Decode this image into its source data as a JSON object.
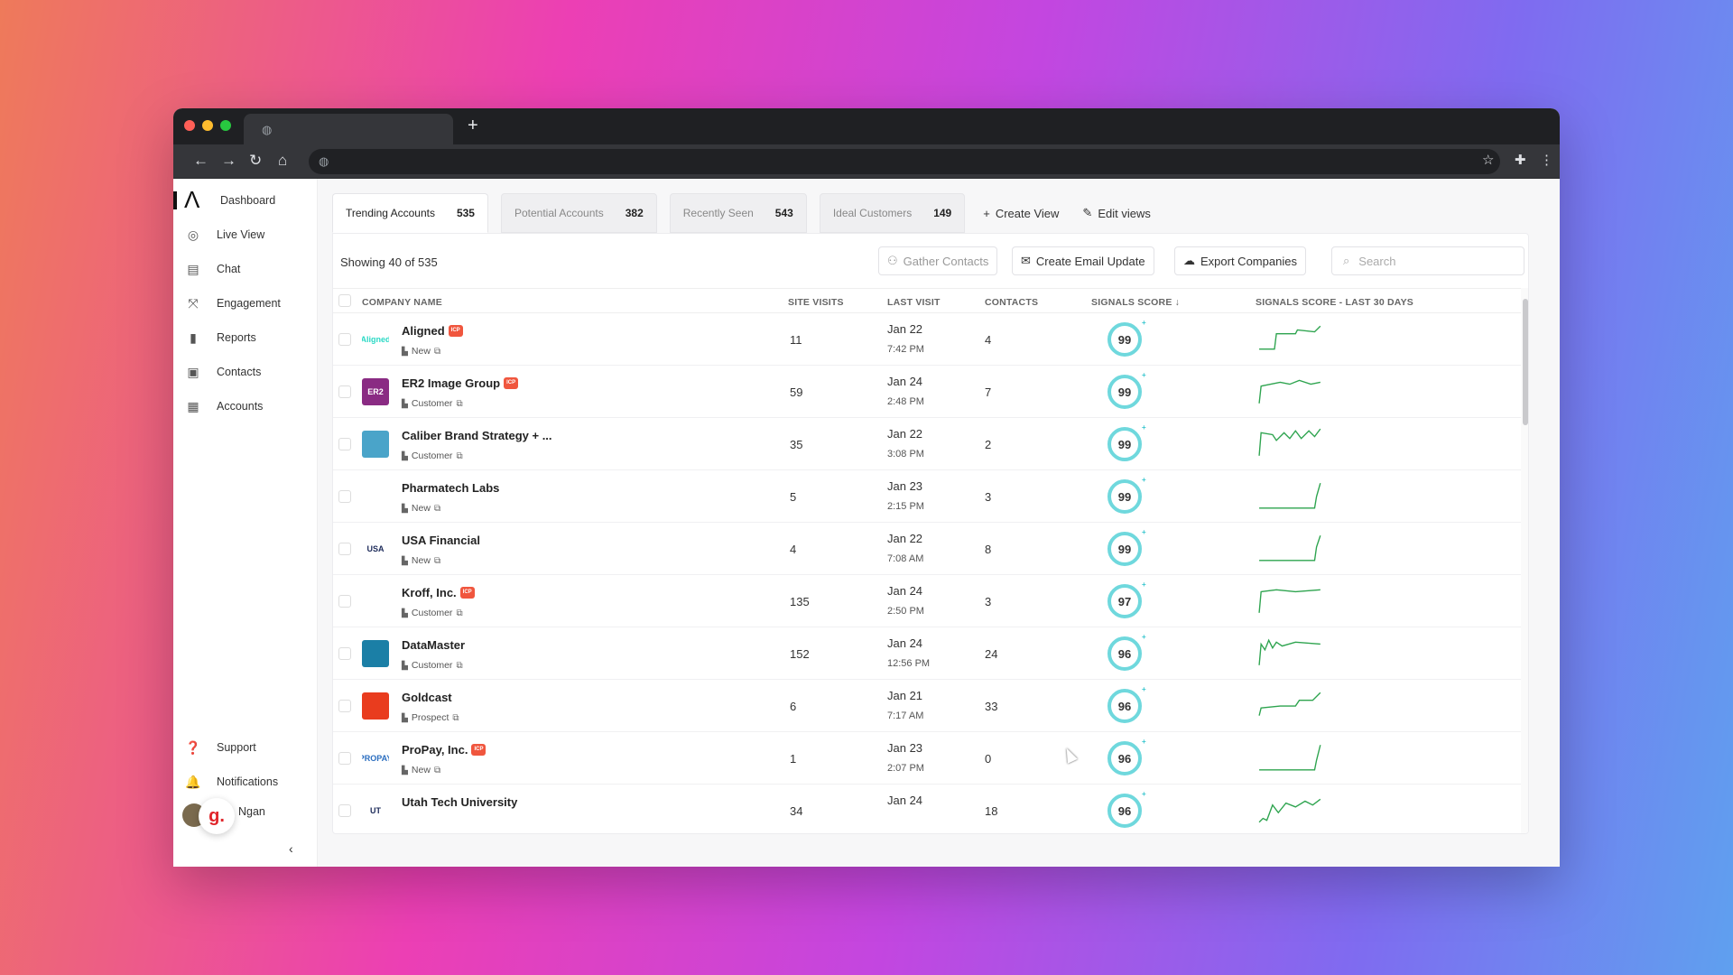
{
  "sidebar": {
    "items": [
      {
        "label": "Dashboard",
        "icon": "logo-icon"
      },
      {
        "label": "Live View",
        "icon": "live-view-icon"
      },
      {
        "label": "Chat",
        "icon": "chat-icon"
      },
      {
        "label": "Engagement",
        "icon": "engagement-icon"
      },
      {
        "label": "Reports",
        "icon": "reports-icon"
      },
      {
        "label": "Contacts",
        "icon": "contacts-icon"
      },
      {
        "label": "Accounts",
        "icon": "accounts-icon"
      }
    ],
    "bottom": [
      {
        "label": "Support",
        "icon": "support-icon"
      },
      {
        "label": "Notifications",
        "icon": "bell-icon"
      }
    ],
    "user_name": "Ngan"
  },
  "views": {
    "tabs": [
      {
        "label": "Trending Accounts",
        "count": "535"
      },
      {
        "label": "Potential Accounts",
        "count": "382"
      },
      {
        "label": "Recently Seen",
        "count": "543"
      },
      {
        "label": "Ideal Customers",
        "count": "149"
      }
    ],
    "create_view": "Create View",
    "edit_views": "Edit views"
  },
  "panel": {
    "showing": "Showing 40 of  535",
    "gather_contacts": "Gather Contacts",
    "create_email_update": "Create Email Update",
    "export_companies": "Export Companies",
    "search_placeholder": "Search"
  },
  "table": {
    "headers": {
      "company": "Company Name",
      "site_visits": "Site Visits",
      "last_visit": "Last Visit",
      "contacts": "Contacts",
      "signals_score": "Signals Score",
      "signals_trend": "Signals Score - Last 30 Days"
    },
    "rows": [
      {
        "name": "Aligned",
        "icp": true,
        "type": "New",
        "visits": "11",
        "date": "Jan 22",
        "time": "7:42 PM",
        "contacts": "4",
        "score": "99"
      },
      {
        "name": "ER2 Image Group",
        "icp": true,
        "type": "Customer",
        "visits": "59",
        "date": "Jan 24",
        "time": "2:48 PM",
        "contacts": "7",
        "score": "99"
      },
      {
        "name": "Caliber Brand Strategy + ...",
        "icp": false,
        "type": "Customer",
        "visits": "35",
        "date": "Jan 22",
        "time": "3:08 PM",
        "contacts": "2",
        "score": "99"
      },
      {
        "name": "Pharmatech Labs",
        "icp": false,
        "type": "New",
        "visits": "5",
        "date": "Jan 23",
        "time": "2:15 PM",
        "contacts": "3",
        "score": "99"
      },
      {
        "name": "USA Financial",
        "icp": false,
        "type": "New",
        "visits": "4",
        "date": "Jan 22",
        "time": "7:08 AM",
        "contacts": "8",
        "score": "99"
      },
      {
        "name": "Kroff, Inc.",
        "icp": true,
        "type": "Customer",
        "visits": "135",
        "date": "Jan 24",
        "time": "2:50 PM",
        "contacts": "3",
        "score": "97"
      },
      {
        "name": "DataMaster",
        "icp": false,
        "type": "Customer",
        "visits": "152",
        "date": "Jan 24",
        "time": "12:56 PM",
        "contacts": "24",
        "score": "96"
      },
      {
        "name": "Goldcast",
        "icp": false,
        "type": "Prospect",
        "visits": "6",
        "date": "Jan 21",
        "time": "7:17 AM",
        "contacts": "33",
        "score": "96"
      },
      {
        "name": "ProPay, Inc.",
        "icp": true,
        "type": "New",
        "visits": "1",
        "date": "Jan 23",
        "time": "2:07 PM",
        "contacts": "0",
        "score": "96"
      },
      {
        "name": "Utah Tech University",
        "icp": false,
        "type": "",
        "visits": "34",
        "date": "Jan 24",
        "time": "",
        "contacts": "18",
        "score": "96"
      }
    ]
  },
  "logos": {
    "row0": "Aligned",
    "row1": "ER2",
    "row2": "",
    "row3": "",
    "row4": "USA",
    "row5": "",
    "row6": "",
    "row7": "",
    "row8": "PROPAY",
    "row9": "UT"
  },
  "colors": {
    "accent": "#6fd8dd",
    "spark": "#2ea44f",
    "icp": "#f0563e"
  }
}
